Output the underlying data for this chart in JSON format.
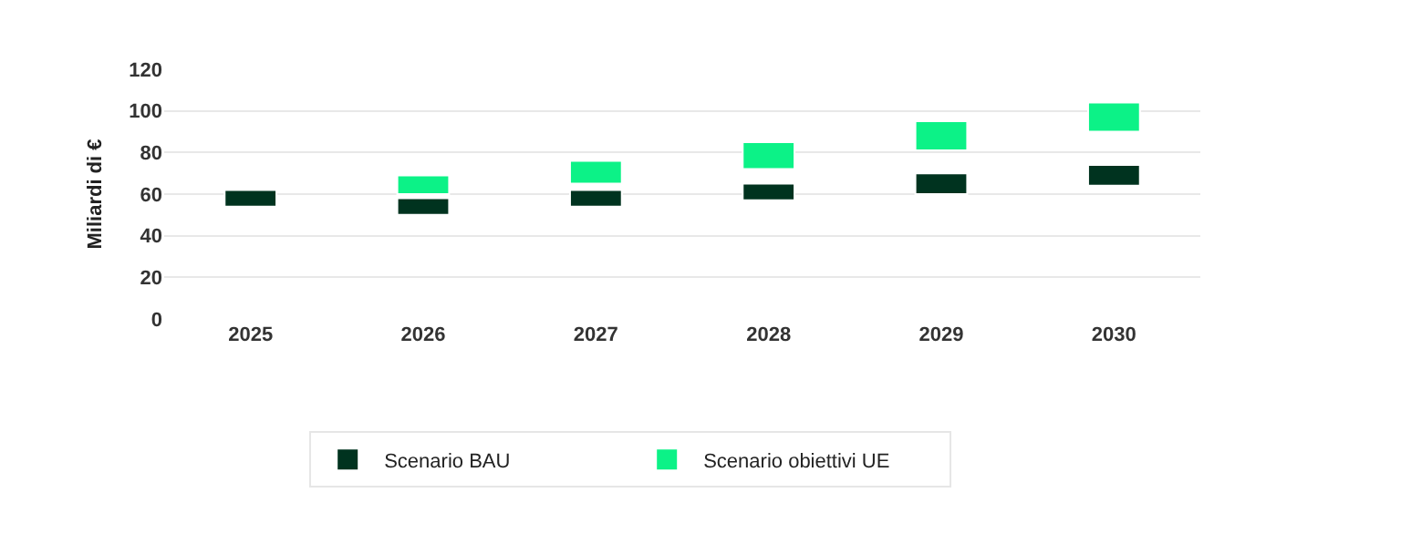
{
  "chart_data": {
    "type": "bar",
    "ylabel": "Miliardi di €",
    "categories": [
      "2025",
      "2026",
      "2027",
      "2028",
      "2029",
      "2030"
    ],
    "series": [
      {
        "name": "Scenario BAU",
        "color": "#00331f",
        "base": [
          54,
          50,
          54,
          57,
          60,
          64
        ],
        "values": [
          8,
          8,
          8,
          8,
          10,
          10
        ]
      },
      {
        "name": "Scenario obiettivi UE",
        "color": "#0cf287",
        "base": [
          null,
          60,
          65,
          72,
          81,
          90
        ],
        "values": [
          null,
          9,
          11,
          13,
          14,
          14
        ]
      }
    ],
    "ylim": [
      0,
      120
    ],
    "yticks": [
      0,
      20,
      40,
      60,
      80,
      100,
      120
    ],
    "grid": "y",
    "legend": "bottom"
  }
}
